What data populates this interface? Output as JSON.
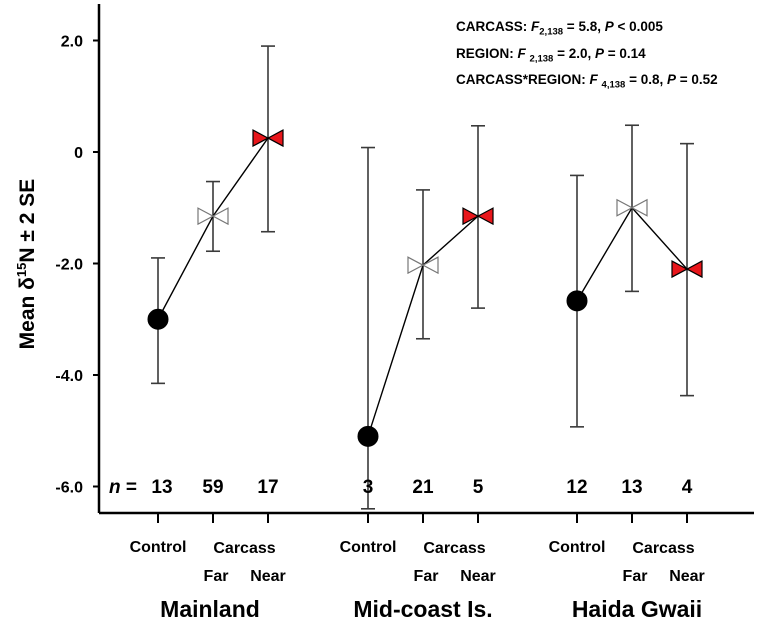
{
  "chart_data": {
    "type": "scatter",
    "ylabel": {
      "prefix": "Mean ",
      "delta": "δ",
      "isotope": "15",
      "element": "N",
      "suffix": " ± 2 SE"
    },
    "ylim": [
      -6.5,
      2.7
    ],
    "y_ticks": [
      {
        "value": 2,
        "label": "2.0"
      },
      {
        "value": 0,
        "label": "0"
      },
      {
        "value": -2,
        "label": "-2.0"
      },
      {
        "value": -4,
        "label": "-4.0"
      },
      {
        "value": -6,
        "label": "-6.0"
      }
    ],
    "regions": [
      "Mainland",
      "Mid-coast Is.",
      "Haida Gwaii"
    ],
    "category_labels": {
      "control": "Control",
      "carcass": "Carcass",
      "far": "Far",
      "near": "Near"
    },
    "n_prefix": "n",
    "n_equals": " = ",
    "marker_colors": {
      "control": "#000000",
      "far": "#ffffff",
      "near": "#e8161b"
    },
    "points": [
      {
        "region": "Mainland",
        "group": "Control",
        "mean": -3.0,
        "lower": -4.15,
        "upper": -1.9,
        "n": "13"
      },
      {
        "region": "Mainland",
        "group": "Far",
        "mean": -1.15,
        "lower": -1.78,
        "upper": -0.53,
        "n": "59"
      },
      {
        "region": "Mainland",
        "group": "Near",
        "mean": 0.25,
        "lower": -1.43,
        "upper": 1.9,
        "n": "17"
      },
      {
        "region": "Mid-coast Is.",
        "group": "Control",
        "mean": -5.1,
        "lower": -6.4,
        "upper": 0.08,
        "n": "3"
      },
      {
        "region": "Mid-coast Is.",
        "group": "Far",
        "mean": -2.03,
        "lower": -3.35,
        "upper": -0.68,
        "n": "21"
      },
      {
        "region": "Mid-coast Is.",
        "group": "Near",
        "mean": -1.15,
        "lower": -2.8,
        "upper": 0.47,
        "n": "5"
      },
      {
        "region": "Haida Gwaii",
        "group": "Control",
        "mean": -2.67,
        "lower": -4.93,
        "upper": -0.42,
        "n": "12"
      },
      {
        "region": "Haida Gwaii",
        "group": "Far",
        "mean": -1.0,
        "lower": -2.5,
        "upper": 0.48,
        "n": "13"
      },
      {
        "region": "Haida Gwaii",
        "group": "Near",
        "mean": -2.1,
        "lower": -4.37,
        "upper": 0.15,
        "n": "4"
      }
    ],
    "annotations": [
      {
        "term": "CARCASS",
        "df": "2,138",
        "F": "5.8",
        "P_op": " < ",
        "P": "0.005"
      },
      {
        "term": "REGION",
        "df": "2,138",
        "F": "2.0",
        "P_op": " = ",
        "P": "0.14"
      },
      {
        "term": "CARCASS*REGION",
        "df": "4,138",
        "F": "0.8",
        "P_op": " = ",
        "P": "0.52"
      }
    ]
  }
}
